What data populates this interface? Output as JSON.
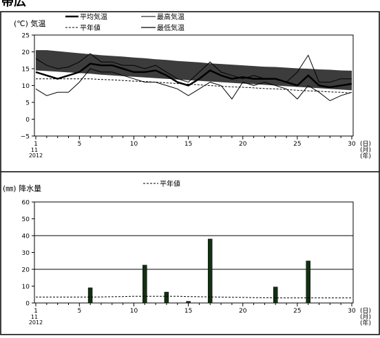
{
  "page_title": "帯広",
  "chart_data": [
    {
      "type": "area",
      "ylabel": "(℃) 気温",
      "ylim": [
        -5,
        25
      ],
      "yticks": [
        -5,
        0,
        5,
        10,
        15,
        20,
        25
      ],
      "grid": false,
      "legend": {
        "position": "top",
        "items": [
          "平均気温",
          "平年値",
          "最高気温",
          "最低気温"
        ]
      },
      "x": [
        1,
        2,
        3,
        4,
        5,
        6,
        7,
        8,
        9,
        10,
        11,
        12,
        13,
        14,
        15,
        16,
        17,
        18,
        19,
        20,
        21,
        22,
        23,
        24,
        25,
        26,
        27,
        28,
        29,
        30
      ],
      "x_ticks": [
        "1",
        "5",
        "10",
        "15",
        "20",
        "25",
        "30"
      ],
      "x_sub": {
        "month": "11",
        "year": "2012"
      },
      "x_units": {
        "day": "(日)",
        "month": "(月)",
        "year": "(年)"
      },
      "series": [
        {
          "name": "最高気温",
          "values": [
            18,
            16,
            15,
            15.5,
            17,
            19.5,
            17,
            17,
            16,
            16,
            15,
            16,
            14,
            12,
            11,
            14,
            17,
            14,
            13,
            12,
            13,
            12,
            12,
            11,
            14,
            19,
            11,
            11,
            12,
            12
          ]
        },
        {
          "name": "最低気温",
          "values": [
            9,
            7,
            8,
            8,
            11,
            15,
            14,
            14,
            13,
            12,
            11,
            11,
            10,
            9,
            7,
            9,
            11,
            10,
            6,
            11,
            10,
            11,
            10,
            9,
            6,
            10,
            8,
            5.5,
            7,
            8
          ]
        },
        {
          "name": "平均気温",
          "values": [
            14,
            13,
            12,
            13,
            14,
            16.5,
            16,
            16,
            15,
            14,
            14,
            14.5,
            13,
            11,
            10,
            12,
            14.5,
            13,
            12,
            12.5,
            12,
            12,
            12,
            11,
            10,
            13,
            10,
            9.5,
            10,
            10.5
          ]
        },
        {
          "name": "平年値",
          "values": [
            12,
            12,
            12,
            12,
            12,
            12,
            11.8,
            11.7,
            11.5,
            11.3,
            11.2,
            11,
            10.8,
            10.6,
            10.4,
            10.2,
            10,
            9.8,
            9.6,
            9.5,
            9.3,
            9.1,
            9,
            8.8,
            8.6,
            8.4,
            8.3,
            8.1,
            8,
            7.8
          ]
        }
      ],
      "normal_band": {
        "upper": [
          20.5,
          20.5,
          20.2,
          19.9,
          19.6,
          19.3,
          19,
          18.8,
          18.6,
          18.3,
          18.1,
          17.8,
          17.6,
          17.3,
          17.1,
          16.9,
          16.6,
          16.4,
          16.2,
          16,
          15.8,
          15.6,
          15.5,
          15.3,
          15.1,
          15,
          14.8,
          14.7,
          14.5,
          14.4
        ],
        "lower": [
          14.5,
          14.3,
          14.1,
          13.9,
          13.7,
          13.5,
          13.2,
          13,
          12.8,
          12.6,
          12.4,
          12.2,
          12,
          11.8,
          11.6,
          11.4,
          11.2,
          11,
          10.8,
          10.6,
          10.4,
          10.2,
          10,
          9.8,
          9.6,
          9.4,
          9.2,
          9,
          8.8,
          8.6
        ]
      },
      "colors": {
        "band": "#3c3c3c",
        "mean": "#000000",
        "range": "#000000"
      }
    },
    {
      "type": "bar",
      "ylabel": "(㎜) 降水量",
      "ylim": [
        0,
        60
      ],
      "yticks": [
        0,
        10,
        20,
        30,
        40,
        50,
        60
      ],
      "hlines": [
        20,
        40
      ],
      "legend": {
        "position": "top",
        "items": [
          "平年値"
        ]
      },
      "x": [
        1,
        2,
        3,
        4,
        5,
        6,
        7,
        8,
        9,
        10,
        11,
        12,
        13,
        14,
        15,
        16,
        17,
        18,
        19,
        20,
        21,
        22,
        23,
        24,
        25,
        26,
        27,
        28,
        29,
        30
      ],
      "x_ticks": [
        "1",
        "5",
        "10",
        "15",
        "20",
        "25",
        "30"
      ],
      "x_sub": {
        "month": "11",
        "year": "2012"
      },
      "x_units": {
        "day": "(日)",
        "month": "(月)",
        "year": "(年)"
      },
      "series": [
        {
          "name": "降水量",
          "values": [
            0,
            0,
            0,
            0,
            0,
            9,
            0,
            0,
            0,
            0,
            22.5,
            0,
            6.5,
            0,
            1,
            0,
            38,
            0,
            0,
            0,
            0,
            0,
            9.5,
            0,
            0,
            25,
            0,
            0,
            0,
            0
          ]
        },
        {
          "name": "平年値",
          "values": [
            3.5,
            3.5,
            3.5,
            3.5,
            3.5,
            3.5,
            3.6,
            3.7,
            3.8,
            4,
            4,
            4,
            4,
            4,
            3.8,
            3.7,
            3.6,
            3.5,
            3.4,
            3.3,
            3.2,
            3.1,
            3,
            3,
            3,
            3,
            3,
            3,
            3,
            3
          ]
        }
      ],
      "colors": {
        "bar": "#123012",
        "hline": "#000000"
      }
    }
  ]
}
